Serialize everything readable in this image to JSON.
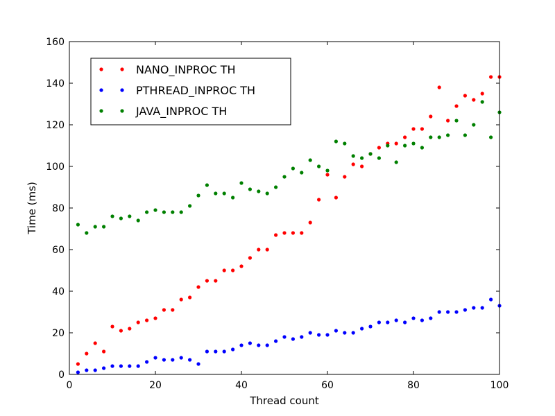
{
  "chart_data": {
    "type": "scatter",
    "xlabel": "Thread count",
    "ylabel": "Time (ms)",
    "xlim": [
      0,
      100
    ],
    "ylim": [
      0,
      160
    ],
    "xticks": [
      0,
      20,
      40,
      60,
      80,
      100
    ],
    "yticks": [
      0,
      20,
      40,
      60,
      80,
      100,
      120,
      140,
      160
    ],
    "grid": false,
    "legend_position": "upper-left",
    "x": [
      2,
      4,
      6,
      8,
      10,
      12,
      14,
      16,
      18,
      20,
      22,
      24,
      26,
      28,
      30,
      32,
      34,
      36,
      38,
      40,
      42,
      44,
      46,
      48,
      50,
      52,
      54,
      56,
      58,
      60,
      62,
      64,
      66,
      68,
      70,
      72,
      74,
      76,
      78,
      80,
      82,
      84,
      86,
      88,
      90,
      92,
      94,
      96,
      98,
      100
    ],
    "series": [
      {
        "name": "NANO_INPROC TH",
        "color": "#ff0000",
        "values": [
          5,
          10,
          15,
          11,
          23,
          21,
          22,
          25,
          26,
          27,
          31,
          31,
          36,
          37,
          42,
          45,
          45,
          50,
          50,
          52,
          56,
          60,
          60,
          67,
          68,
          68,
          68,
          73,
          84,
          96,
          85,
          95,
          101,
          100,
          106,
          109,
          111,
          111,
          114,
          118,
          118,
          124,
          138,
          122,
          129,
          134,
          132,
          135,
          143,
          143
        ]
      },
      {
        "name": "PTHREAD_INPROC TH",
        "color": "#0000ff",
        "values": [
          1,
          2,
          2,
          3,
          4,
          4,
          4,
          4,
          6,
          8,
          7,
          7,
          8,
          7,
          5,
          11,
          11,
          11,
          12,
          14,
          15,
          14,
          14,
          16,
          18,
          17,
          18,
          20,
          19,
          19,
          21,
          20,
          20,
          22,
          23,
          25,
          25,
          26,
          25,
          27,
          26,
          27,
          30,
          30,
          30,
          31,
          32,
          32,
          36,
          33
        ]
      },
      {
        "name": "JAVA_INPROC TH",
        "color": "#008000",
        "values": [
          72,
          68,
          71,
          71,
          76,
          75,
          76,
          74,
          78,
          79,
          78,
          78,
          78,
          81,
          86,
          91,
          87,
          87,
          85,
          92,
          89,
          88,
          87,
          90,
          95,
          99,
          97,
          103,
          100,
          98,
          112,
          111,
          105,
          104,
          106,
          104,
          110,
          102,
          110,
          111,
          109,
          114,
          114,
          115,
          122,
          115,
          120,
          131,
          114,
          126
        ]
      }
    ]
  }
}
